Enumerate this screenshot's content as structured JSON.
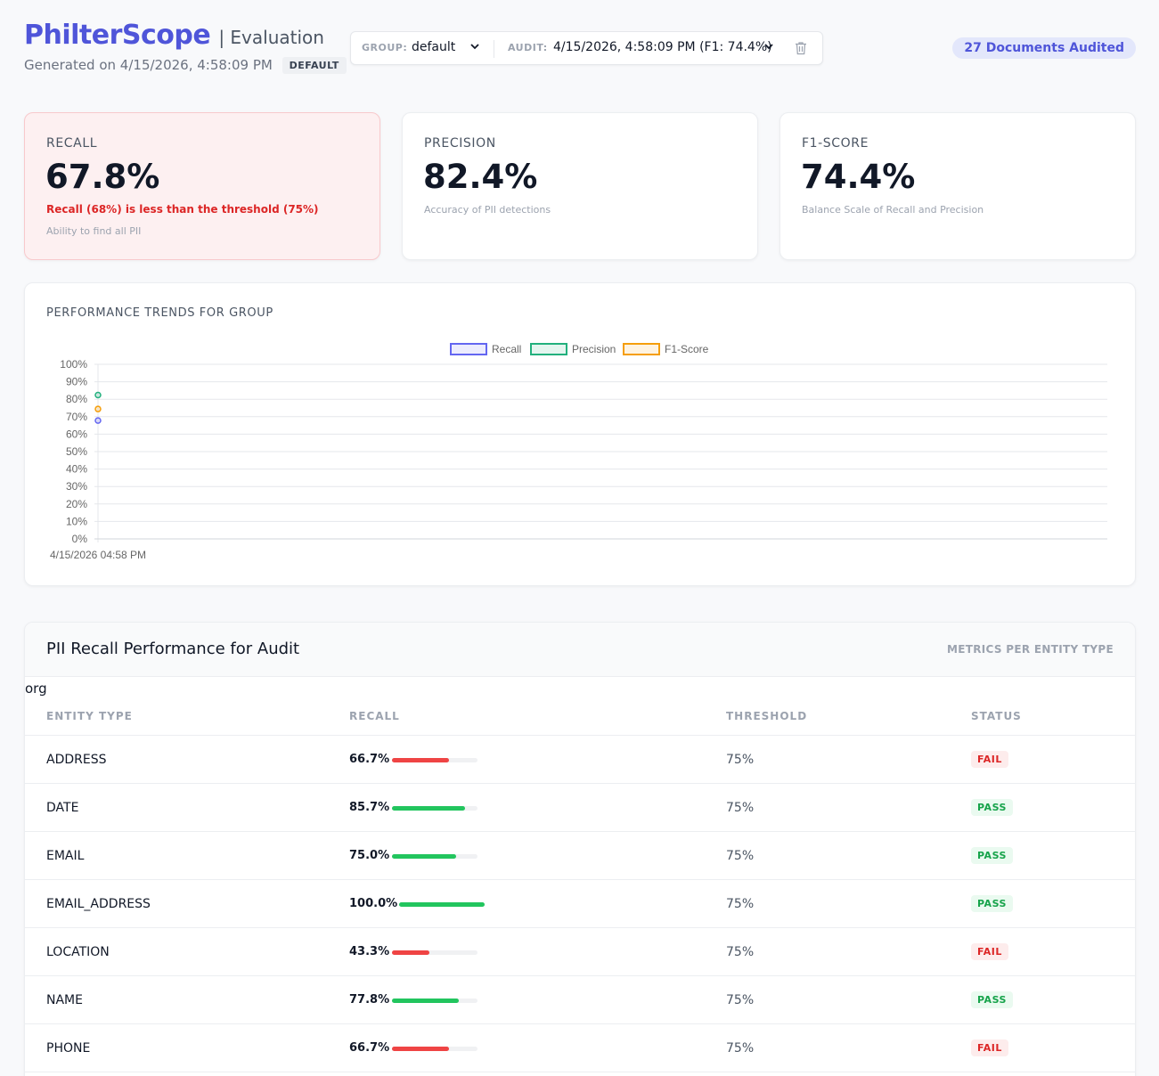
{
  "header": {
    "brand": "PhilterScope",
    "section": "| Evaluation",
    "generated": "Generated on 4/15/2026, 4:58:09 PM",
    "group_badge": "DEFAULT",
    "group_label": "GROUP:",
    "group_value": "default",
    "audit_label": "AUDIT:",
    "audit_value": "4/15/2026, 4:58:09 PM (F1: 74.4%)",
    "docs_badge": "27 Documents Audited"
  },
  "metrics": {
    "recall": {
      "label": "RECALL",
      "value": "67.8%",
      "warning": "Recall (68%) is less than the threshold (75%)",
      "desc": "Ability to find all PII"
    },
    "precision": {
      "label": "PRECISION",
      "value": "82.4%",
      "desc": "Accuracy of PII detections"
    },
    "f1": {
      "label": "F1-SCORE",
      "value": "74.4%",
      "desc": "Balance Scale of Recall and Precision"
    }
  },
  "chart_title": "PERFORMANCE TRENDS FOR GROUP",
  "chart_data": {
    "type": "line",
    "x": [
      "4/15/2026 04:58 PM"
    ],
    "series": [
      {
        "name": "Recall",
        "values": [
          67.8
        ],
        "color": "#6366f1"
      },
      {
        "name": "Precision",
        "values": [
          82.4
        ],
        "color": "#22b07d"
      },
      {
        "name": "F1-Score",
        "values": [
          74.4
        ],
        "color": "#f59e0b"
      }
    ],
    "ylim": [
      0,
      100
    ],
    "yticks": [
      "0%",
      "10%",
      "20%",
      "30%",
      "40%",
      "50%",
      "60%",
      "70%",
      "80%",
      "90%",
      "100%"
    ],
    "legend": "top-center",
    "grid": true
  },
  "table": {
    "title": "PII Recall Performance for Audit",
    "subtitle": "METRICS PER ENTITY TYPE",
    "group_name": "org",
    "columns": [
      "ENTITY TYPE",
      "RECALL",
      "THRESHOLD",
      "STATUS"
    ],
    "rows": [
      {
        "entity": "ADDRESS",
        "recall": "66.7%",
        "recall_value": 66.7,
        "threshold": "75%",
        "status": "FAIL"
      },
      {
        "entity": "DATE",
        "recall": "85.7%",
        "recall_value": 85.7,
        "threshold": "75%",
        "status": "PASS"
      },
      {
        "entity": "EMAIL",
        "recall": "75.0%",
        "recall_value": 75.0,
        "threshold": "75%",
        "status": "PASS"
      },
      {
        "entity": "EMAIL_ADDRESS",
        "recall": "100.0%",
        "recall_value": 100.0,
        "threshold": "75%",
        "status": "PASS"
      },
      {
        "entity": "LOCATION",
        "recall": "43.3%",
        "recall_value": 43.3,
        "threshold": "75%",
        "status": "FAIL"
      },
      {
        "entity": "NAME",
        "recall": "77.8%",
        "recall_value": 77.8,
        "threshold": "75%",
        "status": "PASS"
      },
      {
        "entity": "PHONE",
        "recall": "66.7%",
        "recall_value": 66.7,
        "threshold": "75%",
        "status": "FAIL"
      }
    ]
  },
  "colors": {
    "accent": "#4f55d9",
    "pass": "#22c55e",
    "fail": "#ef4444"
  }
}
